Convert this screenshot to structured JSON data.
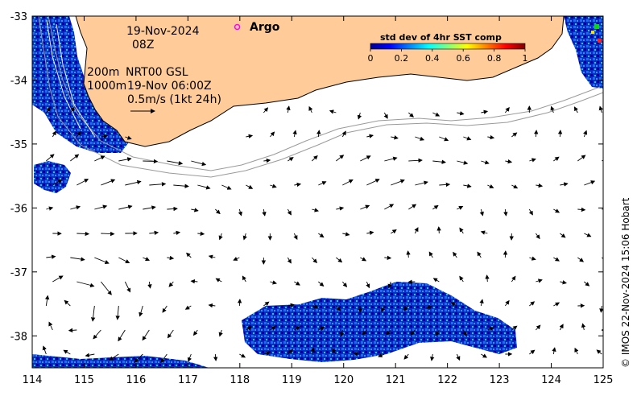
{
  "map": {
    "date": "19-Nov-2024",
    "hour": "08Z",
    "argo_label": "Argo",
    "contour_label_200": "200m",
    "contour_label_1000": "1000m",
    "current_source": "NRT00 GSL",
    "current_time": "19-Nov 06:00Z",
    "scale_label": "0.5m/s (1kt 24h)",
    "credit": "© IMOS 22-Nov-2024 15:06 Hobart",
    "colors": {
      "land": "#ffcc99",
      "sst_low": "#00008f",
      "sst_mid": "#2a6cff",
      "sst_high": "#20e0e0",
      "argo": "#ff00ff"
    }
  },
  "axes": {
    "x_ticks": [
      "114",
      "115",
      "116",
      "117",
      "118",
      "119",
      "120",
      "121",
      "122",
      "123",
      "124",
      "125"
    ],
    "y_ticks": [
      "-33",
      "-34",
      "-35",
      "-36",
      "-37",
      "-38"
    ]
  },
  "colorbar": {
    "title": "std dev of 4hr SST comp",
    "ticks": [
      "0",
      "0.2",
      "0.4",
      "0.6",
      "0.8",
      "1"
    ],
    "range": [
      0,
      1
    ],
    "colormap": "jet"
  },
  "chart_data": {
    "type": "map",
    "lon_range": [
      114,
      125
    ],
    "lat_range": [
      -38.5,
      -33
    ],
    "argo_float": {
      "lon": 117.95,
      "lat": -33.17
    }
  }
}
